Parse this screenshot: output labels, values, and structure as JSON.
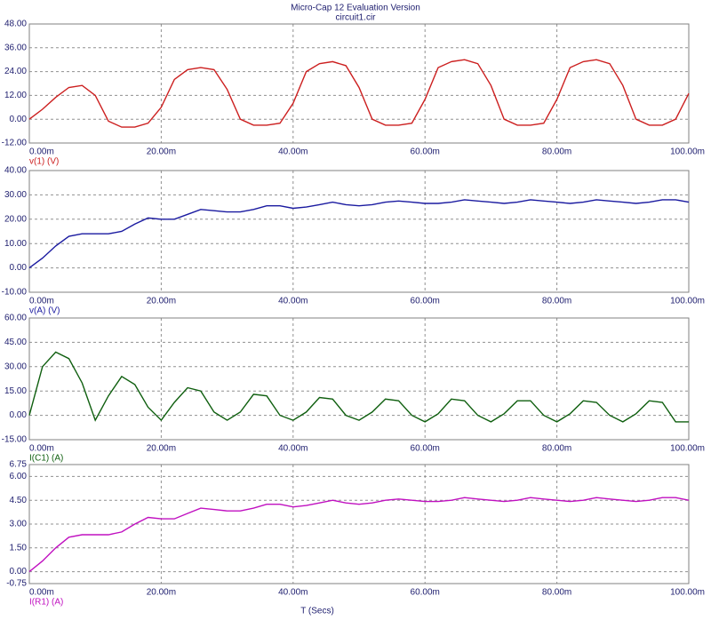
{
  "title": "Micro-Cap 12 Evaluation Version",
  "subtitle": "circuit1.cir",
  "xlabel": "T (Secs)",
  "chart_data": [
    {
      "type": "line",
      "x": [
        0,
        0.002,
        0.004,
        0.006,
        0.008,
        0.01,
        0.012,
        0.014,
        0.016,
        0.018,
        0.02,
        0.022,
        0.024,
        0.026,
        0.028,
        0.03,
        0.032,
        0.034,
        0.036,
        0.038,
        0.04,
        0.042,
        0.044,
        0.046,
        0.048,
        0.05,
        0.052,
        0.054,
        0.056,
        0.058,
        0.06,
        0.062,
        0.064,
        0.066,
        0.068,
        0.07,
        0.072,
        0.074,
        0.076,
        0.078,
        0.08,
        0.082,
        0.084,
        0.086,
        0.088,
        0.09,
        0.092,
        0.094,
        0.096,
        0.098,
        0.1
      ],
      "series": [
        {
          "name": "v(1) (V)",
          "color": "#cc1f1f",
          "values": [
            0,
            5,
            11,
            16,
            17,
            12,
            -1,
            -4,
            -4,
            -2,
            6,
            20,
            25,
            26,
            25,
            15,
            0,
            -3,
            -3,
            -2,
            8,
            24,
            28,
            29,
            27,
            16,
            0,
            -3,
            -3,
            -2,
            10,
            26,
            29,
            30,
            28,
            17,
            0,
            -3,
            -3,
            -2,
            10,
            26,
            29,
            30,
            28,
            17,
            0,
            -3,
            -3,
            0,
            13
          ]
        }
      ],
      "xlim": [
        0,
        0.1
      ],
      "xticks": [
        {
          "value": 0,
          "label": "0.00m"
        },
        {
          "value": 0.02,
          "label": "20.00m"
        },
        {
          "value": 0.04,
          "label": "40.00m"
        },
        {
          "value": 0.06,
          "label": "60.00m"
        },
        {
          "value": 0.08,
          "label": "80.00m"
        },
        {
          "value": 0.1,
          "label": "100.00m"
        }
      ],
      "ylim": [
        -12,
        48
      ],
      "yticks": [
        {
          "value": -12,
          "label": "-12.00"
        },
        {
          "value": 0,
          "label": "0.00"
        },
        {
          "value": 12,
          "label": "12.00"
        },
        {
          "value": 24,
          "label": "24.00"
        },
        {
          "value": 36,
          "label": "36.00"
        },
        {
          "value": 48,
          "label": "48.00"
        }
      ],
      "grid": true
    },
    {
      "type": "line",
      "x": [
        0,
        0.002,
        0.004,
        0.006,
        0.008,
        0.01,
        0.012,
        0.014,
        0.016,
        0.018,
        0.02,
        0.022,
        0.024,
        0.026,
        0.028,
        0.03,
        0.032,
        0.034,
        0.036,
        0.038,
        0.04,
        0.042,
        0.044,
        0.046,
        0.048,
        0.05,
        0.052,
        0.054,
        0.056,
        0.058,
        0.06,
        0.062,
        0.064,
        0.066,
        0.068,
        0.07,
        0.072,
        0.074,
        0.076,
        0.078,
        0.08,
        0.082,
        0.084,
        0.086,
        0.088,
        0.09,
        0.092,
        0.094,
        0.096,
        0.098,
        0.1
      ],
      "series": [
        {
          "name": "v(A) (V)",
          "color": "#1a1aa0",
          "values": [
            0,
            4,
            9,
            13,
            14,
            14,
            14,
            15,
            18,
            20.5,
            20,
            20,
            22,
            24,
            23.5,
            23,
            23,
            24,
            25.5,
            25.5,
            24.5,
            25,
            26,
            27,
            26,
            25.5,
            26,
            27,
            27.5,
            27,
            26.5,
            26.5,
            27,
            28,
            27.5,
            27,
            26.5,
            27,
            28,
            27.5,
            27,
            26.5,
            27,
            28,
            27.5,
            27,
            26.5,
            27,
            28,
            28,
            27
          ]
        }
      ],
      "xlim": [
        0,
        0.1
      ],
      "xticks": [
        {
          "value": 0,
          "label": "0.00m"
        },
        {
          "value": 0.02,
          "label": "20.00m"
        },
        {
          "value": 0.04,
          "label": "40.00m"
        },
        {
          "value": 0.06,
          "label": "60.00m"
        },
        {
          "value": 0.08,
          "label": "80.00m"
        },
        {
          "value": 0.1,
          "label": "100.00m"
        }
      ],
      "ylim": [
        -10,
        40
      ],
      "yticks": [
        {
          "value": -10,
          "label": "-10.00"
        },
        {
          "value": 0,
          "label": "0.00"
        },
        {
          "value": 10,
          "label": "10.00"
        },
        {
          "value": 20,
          "label": "20.00"
        },
        {
          "value": 30,
          "label": "30.00"
        },
        {
          "value": 40,
          "label": "40.00"
        }
      ],
      "grid": true
    },
    {
      "type": "line",
      "x": [
        0,
        0.002,
        0.004,
        0.006,
        0.008,
        0.01,
        0.012,
        0.014,
        0.016,
        0.018,
        0.02,
        0.022,
        0.024,
        0.026,
        0.028,
        0.03,
        0.032,
        0.034,
        0.036,
        0.038,
        0.04,
        0.042,
        0.044,
        0.046,
        0.048,
        0.05,
        0.052,
        0.054,
        0.056,
        0.058,
        0.06,
        0.062,
        0.064,
        0.066,
        0.068,
        0.07,
        0.072,
        0.074,
        0.076,
        0.078,
        0.08,
        0.082,
        0.084,
        0.086,
        0.088,
        0.09,
        0.092,
        0.094,
        0.096,
        0.098,
        0.1
      ],
      "series": [
        {
          "name": "I(C1) (A)",
          "color": "#0f5f0f",
          "values": [
            0,
            30,
            39,
            35,
            20,
            -3,
            12,
            24,
            19,
            5,
            -3,
            8,
            17,
            15,
            2,
            -3,
            2,
            13,
            12,
            0,
            -3,
            2,
            11,
            10,
            0,
            -3,
            2,
            10,
            9,
            0,
            -4,
            1,
            10,
            9,
            0,
            -4,
            1,
            9,
            9,
            0,
            -4,
            1,
            9,
            8,
            0,
            -4,
            1,
            9,
            8,
            -4,
            -4
          ]
        }
      ],
      "xlim": [
        0,
        0.1
      ],
      "xticks": [
        {
          "value": 0,
          "label": "0.00m"
        },
        {
          "value": 0.02,
          "label": "20.00m"
        },
        {
          "value": 0.04,
          "label": "40.00m"
        },
        {
          "value": 0.06,
          "label": "60.00m"
        },
        {
          "value": 0.08,
          "label": "80.00m"
        },
        {
          "value": 0.1,
          "label": "100.00m"
        }
      ],
      "ylim": [
        -15,
        60
      ],
      "yticks": [
        {
          "value": -15,
          "label": "-15.00"
        },
        {
          "value": 0,
          "label": "0.00"
        },
        {
          "value": 15,
          "label": "15.00"
        },
        {
          "value": 30,
          "label": "30.00"
        },
        {
          "value": 45,
          "label": "45.00"
        },
        {
          "value": 60,
          "label": "60.00"
        }
      ],
      "grid": true
    },
    {
      "type": "line",
      "x": [
        0,
        0.002,
        0.004,
        0.006,
        0.008,
        0.01,
        0.012,
        0.014,
        0.016,
        0.018,
        0.02,
        0.022,
        0.024,
        0.026,
        0.028,
        0.03,
        0.032,
        0.034,
        0.036,
        0.038,
        0.04,
        0.042,
        0.044,
        0.046,
        0.048,
        0.05,
        0.052,
        0.054,
        0.056,
        0.058,
        0.06,
        0.062,
        0.064,
        0.066,
        0.068,
        0.07,
        0.072,
        0.074,
        0.076,
        0.078,
        0.08,
        0.082,
        0.084,
        0.086,
        0.088,
        0.09,
        0.092,
        0.094,
        0.096,
        0.098,
        0.1
      ],
      "series": [
        {
          "name": "I(R1) (A)",
          "color": "#c010c0",
          "values": [
            0,
            0.67,
            1.5,
            2.17,
            2.33,
            2.33,
            2.33,
            2.5,
            3,
            3.42,
            3.33,
            3.33,
            3.67,
            4,
            3.92,
            3.83,
            3.83,
            4,
            4.25,
            4.25,
            4.08,
            4.17,
            4.33,
            4.5,
            4.33,
            4.25,
            4.33,
            4.5,
            4.58,
            4.5,
            4.42,
            4.42,
            4.5,
            4.67,
            4.58,
            4.5,
            4.42,
            4.5,
            4.67,
            4.58,
            4.5,
            4.42,
            4.5,
            4.67,
            4.58,
            4.5,
            4.42,
            4.5,
            4.67,
            4.67,
            4.5
          ]
        }
      ],
      "xlim": [
        0,
        0.1
      ],
      "xticks": [
        {
          "value": 0,
          "label": "0.00m"
        },
        {
          "value": 0.02,
          "label": "20.00m"
        },
        {
          "value": 0.04,
          "label": "40.00m"
        },
        {
          "value": 0.06,
          "label": "60.00m"
        },
        {
          "value": 0.08,
          "label": "80.00m"
        },
        {
          "value": 0.1,
          "label": "100.00m"
        }
      ],
      "ylim": [
        -0.75,
        6.75
      ],
      "yticks": [
        {
          "value": -0.75,
          "label": "-0.75"
        },
        {
          "value": 0,
          "label": "0.00"
        },
        {
          "value": 1.5,
          "label": "1.50"
        },
        {
          "value": 3,
          "label": "3.00"
        },
        {
          "value": 4.5,
          "label": "4.50"
        },
        {
          "value": 6,
          "label": "6.00"
        },
        {
          "value": 6.75,
          "label": "6.75"
        }
      ],
      "grid": true
    }
  ]
}
